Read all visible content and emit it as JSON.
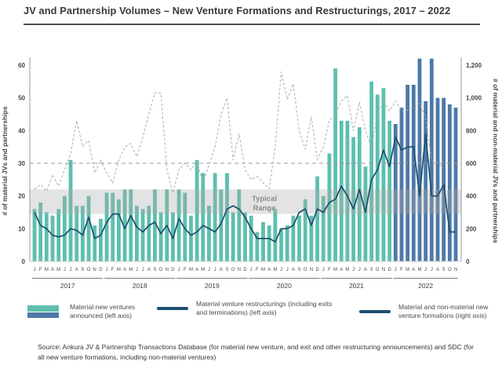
{
  "title": "JV and Partnership Volumes – New Venture Formations and Restructurings, 2017 – 2022",
  "source": "Source: Ankura JV & Partnership Transactions Database (for material new venture, and exit and other restructuring announcements) and SDC (for all new venture formations, including non-material ventures)",
  "legend": {
    "items": [
      {
        "label": "Material new ventures announced (left axis)",
        "swatch": "teal-and-blue-bars"
      },
      {
        "label": "Material venture restructurings (including exits and terminations) (left axis)",
        "swatch": "navy-line"
      },
      {
        "label": "Material and non-material new venture formations (right axis)",
        "swatch": "navy-line"
      }
    ]
  },
  "colors": {
    "bar_teal": "#5ebfae",
    "bar_blue": "#4e79a7",
    "line_navy": "#1b506e",
    "line_dashed": "#ababab",
    "band_gray": "#aaaaaa",
    "reference_gray": "#999999",
    "axis_text": "#444444",
    "month_text": "#4a4a4a",
    "band_label": "#8a8a8a"
  },
  "chart_data": {
    "type": "combo",
    "left_axis": {
      "title": "# of material JVs and partnerships",
      "ticks": [
        0,
        10,
        20,
        30,
        40,
        50,
        60
      ],
      "max": 62.4
    },
    "right_axis": {
      "title": "# of material and non-material JVs and partnerships",
      "ticks": [
        "0",
        "200",
        "400",
        "600",
        "800",
        "1,000",
        "1,200"
      ],
      "tick_values": [
        0,
        200,
        400,
        600,
        800,
        1000,
        1200
      ],
      "max": 1248
    },
    "reference_line_left": 30,
    "typical_range": {
      "label_line1": "Typical",
      "label_line2": "Range",
      "low": 14.5,
      "high": 22
    },
    "years": [
      {
        "label": "2017",
        "letters": "JFMAMJJASOND"
      },
      {
        "label": "2018",
        "letters": "JFMAMJJASOND"
      },
      {
        "label": "2019",
        "letters": "JFMAMJJASOND"
      },
      {
        "label": "2020",
        "letters": "JFMAMJJASOND"
      },
      {
        "label": "2021",
        "letters": "JFMAMJJASOND"
      },
      {
        "label": "2022",
        "letters": "JFMAMJJASON"
      }
    ],
    "series": [
      {
        "name": "Material new ventures announced",
        "type": "bar",
        "axis": "left",
        "blue_start_index": 60,
        "values": [
          16,
          18,
          15,
          14,
          16,
          20,
          31,
          17,
          17,
          20,
          11,
          13,
          21,
          21,
          19,
          22,
          22,
          17,
          16,
          17,
          22,
          15,
          22,
          15,
          22,
          21,
          14,
          31,
          27,
          17,
          27,
          22,
          27,
          15,
          22,
          15,
          14,
          9,
          12,
          11,
          16,
          10,
          11,
          14,
          14,
          19,
          14,
          26,
          20,
          33,
          59,
          43,
          43,
          38,
          41,
          29,
          55,
          51,
          53,
          43,
          42,
          47,
          54,
          54,
          62,
          49,
          62,
          50,
          50,
          48,
          47
        ]
      },
      {
        "name": "Material venture restructurings (including exits and terminations)",
        "type": "line",
        "axis": "left",
        "values": [
          15,
          11,
          10,
          8,
          7.5,
          8,
          10,
          9.5,
          8,
          13.5,
          7,
          8,
          12,
          14.5,
          14.5,
          10,
          14,
          10.5,
          9,
          11,
          12,
          8.5,
          11,
          7,
          13,
          10,
          8,
          9,
          11,
          10,
          9,
          11.5,
          16,
          17,
          16,
          13.5,
          10,
          7,
          7,
          7,
          6,
          10,
          10,
          11,
          15,
          16,
          11,
          16,
          15,
          18,
          19,
          23,
          20,
          16,
          22,
          15,
          25,
          28,
          34,
          29,
          38,
          34,
          35,
          35,
          20,
          39,
          20,
          20,
          23.5,
          9,
          9
        ]
      },
      {
        "name": "Material and non-material new venture formations",
        "type": "dashed-line",
        "axis": "right",
        "values": [
          440,
          470,
          430,
          530,
          460,
          560,
          660,
          860,
          700,
          740,
          540,
          620,
          540,
          480,
          620,
          700,
          720,
          640,
          760,
          900,
          1030,
          1030,
          560,
          420,
          560,
          600,
          560,
          614,
          478,
          590,
          700,
          900,
          1000,
          620,
          780,
          560,
          500,
          520,
          480,
          446,
          700,
          1160,
          990,
          1086,
          800,
          686,
          886,
          622,
          700,
          860,
          900,
          980,
          1014,
          798,
          974,
          800,
          700,
          900,
          980,
          920,
          980,
          920,
          926,
          940,
          966,
          880,
          622,
          600,
          575,
          null,
          null
        ]
      }
    ]
  }
}
